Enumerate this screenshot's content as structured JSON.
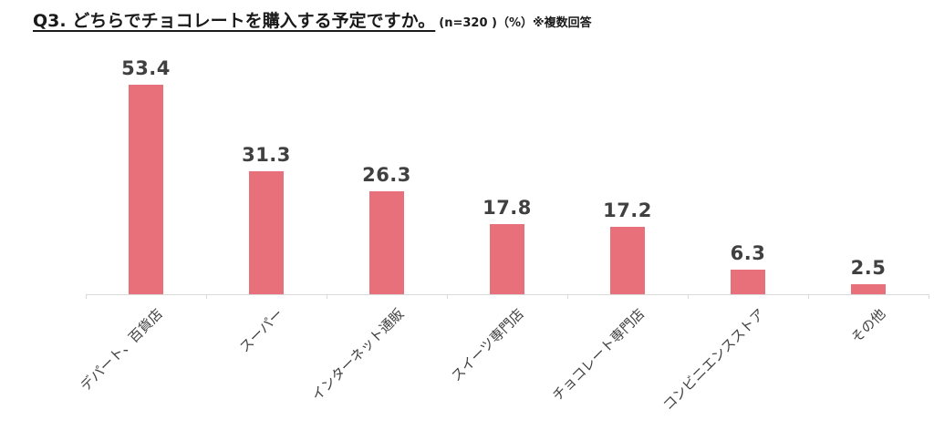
{
  "title": "Q3. どちらでチョコレートを購入する予定ですか。",
  "subtitle": "(n=320 )（%）※複数回答",
  "chart_data": {
    "type": "bar",
    "title": "Q3. どちらでチョコレートを購入する予定ですか。",
    "note": "(n=320 )（%）※複数回答",
    "categories": [
      "デパート、百貨店",
      "スーパー",
      "インターネット通販",
      "スイーツ専門店",
      "チョコレート専門店",
      "コンビニエンスストア",
      "その他"
    ],
    "values": [
      53.4,
      31.3,
      26.3,
      17.8,
      17.2,
      6.3,
      2.5
    ],
    "xlabel": "",
    "ylabel": "",
    "ylim": [
      0,
      60
    ],
    "bar_color": "#e8707a",
    "axis_color": "#d9d9d9",
    "label_color": "#404040",
    "grid": "off",
    "legend": "none",
    "data_labels": "on"
  }
}
